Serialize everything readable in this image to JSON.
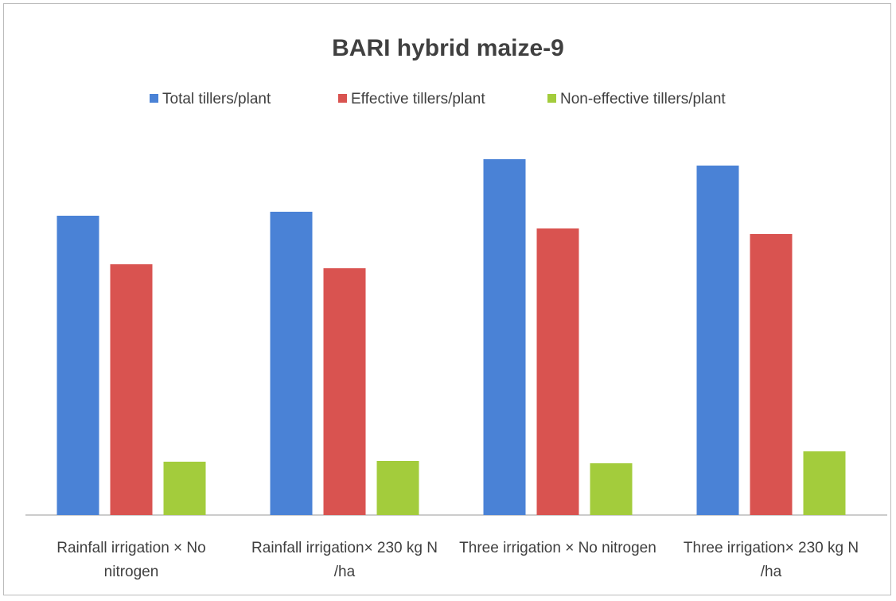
{
  "chart_data": {
    "type": "bar",
    "title": "BARI hybrid maize-9",
    "categories": [
      "Rainfall irrigation × No nitrogen",
      "Rainfall irrigation×  230 kg N /ha",
      "Three irrigation × No nitrogen",
      "Three irrigation×  230 kg N /ha"
    ],
    "series": [
      {
        "name": "Total tillers/plant",
        "color": "#4a82d6",
        "values": [
          376,
          381,
          447,
          439
        ]
      },
      {
        "name": "Effective tillers/plant",
        "color": "#d95350",
        "values": [
          315,
          310,
          360,
          353
        ]
      },
      {
        "name": "Non-effective tillers/plant",
        "color": "#a3cc3c",
        "values": [
          67,
          68,
          65,
          80
        ]
      }
    ],
    "ylim": [
      0,
      487
    ]
  }
}
